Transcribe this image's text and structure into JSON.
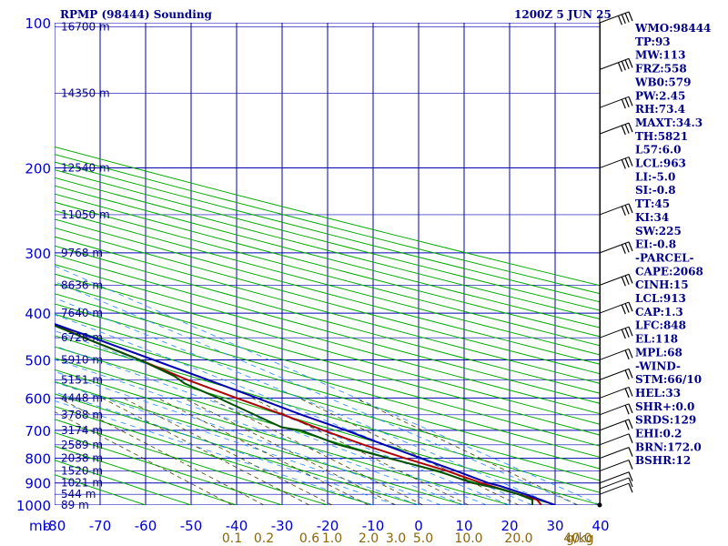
{
  "chart_data": {
    "type": "line",
    "title": "RPMP (98444) Sounding",
    "time_label": "1200Z  5 JUN 25",
    "pressure_unit": "mb",
    "pressure_levels": [
      100,
      200,
      300,
      400,
      500,
      600,
      700,
      800,
      900,
      1000
    ],
    "temperature_ticks": [
      -80,
      -70,
      -60,
      -50,
      -40,
      -30,
      -20,
      -10,
      0,
      10,
      20,
      30,
      40
    ],
    "height_labels": [
      {
        "p": 102,
        "label": "16700 m"
      },
      {
        "p": 140,
        "label": "14350 m"
      },
      {
        "p": 200,
        "label": "12540 m"
      },
      {
        "p": 250,
        "label": "11050 m"
      },
      {
        "p": 300,
        "label": "9768 m"
      },
      {
        "p": 350,
        "label": "8636 m"
      },
      {
        "p": 400,
        "label": "7640 m"
      },
      {
        "p": 450,
        "label": "6728 m"
      },
      {
        "p": 500,
        "label": "5910 m"
      },
      {
        "p": 550,
        "label": "5151 m"
      },
      {
        "p": 600,
        "label": "4448 m"
      },
      {
        "p": 650,
        "label": "3788 m"
      },
      {
        "p": 700,
        "label": "3174 m"
      },
      {
        "p": 750,
        "label": "2589 m"
      },
      {
        "p": 800,
        "label": "2038 m"
      },
      {
        "p": 850,
        "label": "1520 m"
      },
      {
        "p": 900,
        "label": "1021 m"
      },
      {
        "p": 950,
        "label": "544 m"
      },
      {
        "p": 1000,
        "label": "89 m"
      }
    ],
    "mixing_ratio_labels": [
      {
        "value": 0.1,
        "label": "0.1",
        "temp_at_bottom": -41
      },
      {
        "value": 0.2,
        "label": "0.2",
        "temp_at_bottom": -34
      },
      {
        "value": 0.6,
        "label": "0.6",
        "temp_at_bottom": -24
      },
      {
        "value": 1.0,
        "label": "1.0",
        "temp_at_bottom": -19
      },
      {
        "value": 2.0,
        "label": "2.0",
        "temp_at_bottom": -11
      },
      {
        "value": 3.0,
        "label": "3.0",
        "temp_at_bottom": -5
      },
      {
        "value": 5.0,
        "label": "5.0",
        "temp_at_bottom": 1
      },
      {
        "value": 10.0,
        "label": "10.0",
        "temp_at_bottom": 11
      },
      {
        "value": 20.0,
        "label": "20.0",
        "temp_at_bottom": 22
      },
      {
        "value": 40.0,
        "label": "40.0",
        "temp_at_bottom": 35
      }
    ],
    "mixing_ratio_unit": "g/kg",
    "series": [
      {
        "kind": "temperature",
        "color": "#b00000",
        "points": [
          [
            1000,
            27
          ],
          [
            975,
            28
          ],
          [
            950,
            26
          ],
          [
            925,
            24
          ],
          [
            900,
            22
          ],
          [
            850,
            19
          ],
          [
            800,
            14.5
          ],
          [
            750,
            10.5
          ],
          [
            700,
            7
          ],
          [
            650,
            4
          ],
          [
            600,
            0
          ],
          [
            550,
            -4
          ],
          [
            500,
            -7
          ],
          [
            450,
            -11
          ],
          [
            400,
            -14
          ],
          [
            350,
            -20
          ],
          [
            300,
            -27
          ],
          [
            250,
            -36
          ],
          [
            200,
            -47
          ],
          [
            150,
            -62
          ],
          [
            115,
            -74
          ],
          [
            102,
            -76
          ]
        ]
      },
      {
        "kind": "dewpoint",
        "color": "#005000",
        "points": [
          [
            1000,
            25
          ],
          [
            975,
            27
          ],
          [
            950,
            26
          ],
          [
            925,
            24
          ],
          [
            900,
            20
          ],
          [
            850,
            17
          ],
          [
            800,
            11
          ],
          [
            750,
            5
          ],
          [
            700,
            2
          ],
          [
            690,
            -1
          ],
          [
            600,
            -4
          ],
          [
            560,
            -6
          ],
          [
            540,
            -5.5
          ],
          [
            500,
            -7
          ],
          [
            450,
            -11
          ],
          [
            400,
            -15
          ],
          [
            350,
            -22
          ],
          [
            300,
            -29
          ],
          [
            275,
            -30
          ],
          [
            250,
            -37
          ],
          [
            225,
            -44
          ],
          [
            200,
            -53
          ],
          [
            185,
            -55
          ],
          [
            150,
            -65
          ],
          [
            135,
            -67
          ],
          [
            130,
            -70
          ],
          [
            110,
            -80
          ]
        ]
      },
      {
        "kind": "parcel",
        "color": "#0000b0",
        "points": [
          [
            1000,
            30
          ],
          [
            950,
            27.5
          ],
          [
            913,
            25
          ],
          [
            900,
            23.5
          ],
          [
            850,
            21
          ],
          [
            800,
            18
          ],
          [
            750,
            15
          ],
          [
            700,
            12
          ],
          [
            650,
            8
          ],
          [
            600,
            4.5
          ],
          [
            550,
            0.5
          ],
          [
            500,
            -4
          ],
          [
            450,
            -9
          ],
          [
            400,
            -15
          ],
          [
            350,
            -22
          ],
          [
            300,
            -30
          ],
          [
            250,
            -40
          ],
          [
            200,
            -51
          ],
          [
            150,
            -64
          ],
          [
            118,
            -74
          ],
          [
            100,
            -81
          ]
        ]
      }
    ],
    "wind_barbs": [
      {
        "p": 1000,
        "barbs": 0
      },
      {
        "p": 950,
        "barbs": 1
      },
      {
        "p": 925,
        "barbs": 1
      },
      {
        "p": 900,
        "barbs": 1
      },
      {
        "p": 850,
        "barbs": 1
      },
      {
        "p": 800,
        "barbs": 1
      },
      {
        "p": 750,
        "barbs": 1
      },
      {
        "p": 700,
        "barbs": 2
      },
      {
        "p": 650,
        "barbs": 2
      },
      {
        "p": 600,
        "barbs": 2
      },
      {
        "p": 550,
        "barbs": 2
      },
      {
        "p": 500,
        "barbs": 2
      },
      {
        "p": 450,
        "barbs": 3
      },
      {
        "p": 400,
        "barbs": 3
      },
      {
        "p": 350,
        "barbs": 3
      },
      {
        "p": 300,
        "barbs": 3
      },
      {
        "p": 250,
        "barbs": 3
      },
      {
        "p": 200,
        "barbs": 3
      },
      {
        "p": 170,
        "barbs": 3
      },
      {
        "p": 150,
        "barbs": 3
      },
      {
        "p": 125,
        "barbs": 4
      },
      {
        "p": 100,
        "barbs": 4
      }
    ],
    "indices": [
      "WMO:98444",
      "TP:93",
      "MW:113",
      "FRZ:558",
      "WB0:579",
      "PW:2.45",
      "RH:73.4",
      "MAXT:34.3",
      "TH:5821",
      "L57:6.0",
      "LCL:963",
      "LI:-5.0",
      "SI:-0.8",
      "TT:45",
      "KI:34",
      "SW:225",
      "EI:-0.8",
      "-PARCEL-",
      "CAPE:2068",
      "CINH:15",
      "LCL:913",
      "CAP:1.3",
      "LFC:848",
      "EL:118",
      "MPL:68",
      "-WIND-",
      "STM:66/10",
      "HEL:33",
      "SHR+:0.0",
      "SRDS:129",
      "EHI:0.2",
      "BRN:172.0",
      "BSHR:12"
    ],
    "legend": "none",
    "grid": true,
    "colors": {
      "isobar": "#0000b0",
      "isotherm": "#0000b0",
      "dry_adiabat": "#00aa00",
      "mixing_ratio": "#444400",
      "moist_adiabat": "#2288ff",
      "axis_text": "#0000cd"
    }
  }
}
